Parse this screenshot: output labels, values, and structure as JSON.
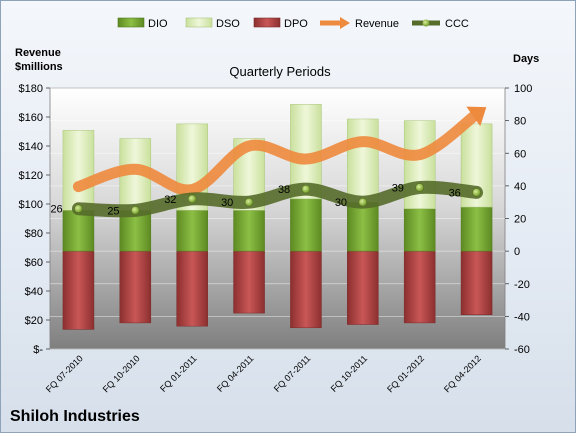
{
  "chart_data": {
    "type": "bar",
    "title": "Quarterly Periods",
    "company": "Shiloh Industries",
    "left_axis": {
      "title_line1": "Revenue",
      "title_line2": "$millions",
      "range": [
        0,
        180
      ],
      "ticks": [
        0,
        20,
        40,
        60,
        80,
        100,
        120,
        140,
        160,
        180
      ],
      "tick_labels": [
        "$-",
        "$20",
        "$40",
        "$60",
        "$80",
        "$100",
        "$120",
        "$140",
        "$160",
        "$180"
      ]
    },
    "right_axis": {
      "title": "Days",
      "range": [
        -60,
        100
      ],
      "ticks": [
        -60,
        -40,
        -20,
        0,
        20,
        40,
        60,
        80,
        100
      ],
      "tick_labels": [
        "-60",
        "-40",
        "-20",
        "0",
        "20",
        "40",
        "60",
        "80",
        "100"
      ]
    },
    "categories": [
      "FQ 07-2010",
      "FQ 10-2010",
      "FQ 01-2011",
      "FQ 04-2011",
      "FQ 07-2011",
      "FQ 10-2011",
      "FQ 01-2012",
      "FQ 04-2012"
    ],
    "series": [
      {
        "name": "DIO",
        "type": "stacked-bar",
        "axis": "days",
        "values": [
          25,
          25,
          25,
          25,
          32,
          30,
          26,
          27
        ]
      },
      {
        "name": "DSO",
        "type": "stacked-bar",
        "axis": "days",
        "values": [
          49,
          44,
          53,
          44,
          58,
          51,
          54,
          51
        ]
      },
      {
        "name": "DPO",
        "type": "stacked-bar-negative",
        "axis": "days",
        "values": [
          -48,
          -44,
          -46,
          -38,
          -47,
          -45,
          -44,
          -39
        ]
      },
      {
        "name": "Revenue",
        "type": "line",
        "axis": "revenue",
        "values": [
          112,
          124,
          110,
          140,
          131,
          143,
          134,
          162
        ]
      },
      {
        "name": "CCC",
        "type": "line",
        "axis": "days",
        "values": [
          26,
          25,
          32,
          30,
          38,
          30,
          39,
          36
        ]
      }
    ],
    "ccc_labels": [
      "26",
      "25",
      "32",
      "30",
      "38",
      "30",
      "39",
      "36"
    ],
    "legend_position": "top",
    "colors": {
      "DIO": "#76a032",
      "DSO": "#dfeec2",
      "DPO": "#b34646",
      "Revenue": "#ee8a3d",
      "CCC": "#556b2a"
    }
  }
}
